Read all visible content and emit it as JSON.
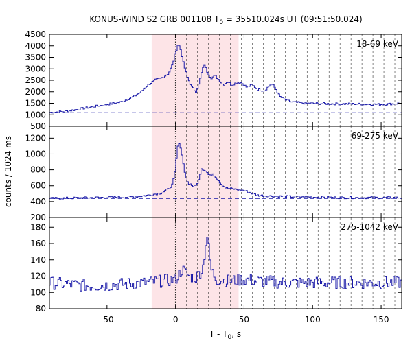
{
  "chart_data": {
    "type": "line",
    "title": "KONUS-WIND S2 GRB 001108 T",
    "title_sub": "0",
    "title_rest": " = 35510.024s UT (09:51:50.024)",
    "xlabel": "T - T",
    "xlabel_sub": "0",
    "xlabel_rest": ", s",
    "ylabel": "counts / 1024 ms",
    "xlim": [
      -92,
      165
    ],
    "x_ticks": [
      -50,
      0,
      50,
      100,
      150
    ],
    "x_tick_labels": [
      "-50",
      "0",
      "50",
      "100",
      "150"
    ],
    "shaded_interval": [
      -17.4,
      46.0
    ],
    "t0_marker": 0,
    "dashed_markers": [
      0,
      8,
      16,
      24,
      32,
      40,
      48,
      56,
      64,
      72,
      80,
      88,
      96,
      104,
      112,
      120,
      128,
      136,
      144,
      152,
      160
    ],
    "panels": [
      {
        "band": "18-69 keV",
        "ylim": [
          500,
          4500
        ],
        "y_ticks": [
          500,
          1000,
          1500,
          2000,
          2500,
          3000,
          3500,
          4000,
          4500
        ],
        "y_tick_labels": [
          "500",
          "1000",
          "1500",
          "2000",
          "2500",
          "3000",
          "3500",
          "4000",
          "4500"
        ],
        "background": 1090,
        "points": [
          [
            -92,
            1100
          ],
          [
            -80,
            1150
          ],
          [
            -70,
            1250
          ],
          [
            -60,
            1350
          ],
          [
            -50,
            1450
          ],
          [
            -40,
            1550
          ],
          [
            -30,
            1800
          ],
          [
            -25,
            2000
          ],
          [
            -20,
            2300
          ],
          [
            -15,
            2500
          ],
          [
            -10,
            2600
          ],
          [
            -5,
            2800
          ],
          [
            -2,
            3200
          ],
          [
            0,
            3700
          ],
          [
            2,
            4100
          ],
          [
            4,
            3800
          ],
          [
            6,
            3200
          ],
          [
            9,
            2600
          ],
          [
            12,
            2200
          ],
          [
            15,
            2000
          ],
          [
            17,
            2300
          ],
          [
            19,
            2800
          ],
          [
            21,
            3200
          ],
          [
            23,
            2900
          ],
          [
            26,
            2600
          ],
          [
            29,
            2700
          ],
          [
            32,
            2500
          ],
          [
            35,
            2300
          ],
          [
            38,
            2450
          ],
          [
            41,
            2300
          ],
          [
            45,
            2400
          ],
          [
            48,
            2400
          ],
          [
            52,
            2200
          ],
          [
            56,
            2300
          ],
          [
            60,
            2100
          ],
          [
            65,
            2050
          ],
          [
            70,
            2350
          ],
          [
            73,
            2150
          ],
          [
            76,
            1800
          ],
          [
            80,
            1650
          ],
          [
            85,
            1550
          ],
          [
            95,
            1500
          ],
          [
            110,
            1480
          ],
          [
            130,
            1470
          ],
          [
            150,
            1450
          ],
          [
            165,
            1500
          ]
        ]
      },
      {
        "band": "69-275 keV",
        "ylim": [
          200,
          1350
        ],
        "y_ticks": [
          200,
          400,
          600,
          800,
          1000,
          1200
        ],
        "y_tick_labels": [
          "200",
          "400",
          "600",
          "800",
          "1000",
          "1200"
        ],
        "background": 440,
        "points": [
          [
            -92,
            440
          ],
          [
            -60,
            450
          ],
          [
            -30,
            460
          ],
          [
            -20,
            480
          ],
          [
            -10,
            510
          ],
          [
            -5,
            560
          ],
          [
            -2,
            620
          ],
          [
            0,
            800
          ],
          [
            1,
            1000
          ],
          [
            2,
            1140
          ],
          [
            4,
            1080
          ],
          [
            6,
            850
          ],
          [
            8,
            680
          ],
          [
            10,
            620
          ],
          [
            12,
            600
          ],
          [
            15,
            600
          ],
          [
            17,
            680
          ],
          [
            19,
            820
          ],
          [
            21,
            800
          ],
          [
            23,
            770
          ],
          [
            25,
            720
          ],
          [
            27,
            760
          ],
          [
            30,
            700
          ],
          [
            33,
            630
          ],
          [
            37,
            570
          ],
          [
            42,
            560
          ],
          [
            50,
            540
          ],
          [
            55,
            510
          ],
          [
            60,
            480
          ],
          [
            70,
            470
          ],
          [
            90,
            460
          ],
          [
            120,
            450
          ],
          [
            165,
            450
          ]
        ]
      },
      {
        "band": "275-1042 keV",
        "ylim": [
          80,
          192
        ],
        "y_ticks": [
          80,
          100,
          120,
          140,
          160,
          180
        ],
        "y_tick_labels": [
          "80",
          "100",
          "120",
          "140",
          "160",
          "180"
        ],
        "background": null,
        "points": [
          [
            -92,
            112
          ],
          [
            -80,
            110
          ],
          [
            -60,
            108
          ],
          [
            -40,
            110
          ],
          [
            -20,
            112
          ],
          [
            -10,
            114
          ],
          [
            0,
            116
          ],
          [
            5,
            128
          ],
          [
            10,
            120
          ],
          [
            15,
            118
          ],
          [
            20,
            130
          ],
          [
            23,
            172
          ],
          [
            26,
            128
          ],
          [
            30,
            116
          ],
          [
            40,
            114
          ],
          [
            50,
            116
          ],
          [
            60,
            114
          ],
          [
            80,
            112
          ],
          [
            100,
            112
          ],
          [
            120,
            112
          ],
          [
            140,
            112
          ],
          [
            165,
            112
          ]
        ]
      }
    ]
  }
}
